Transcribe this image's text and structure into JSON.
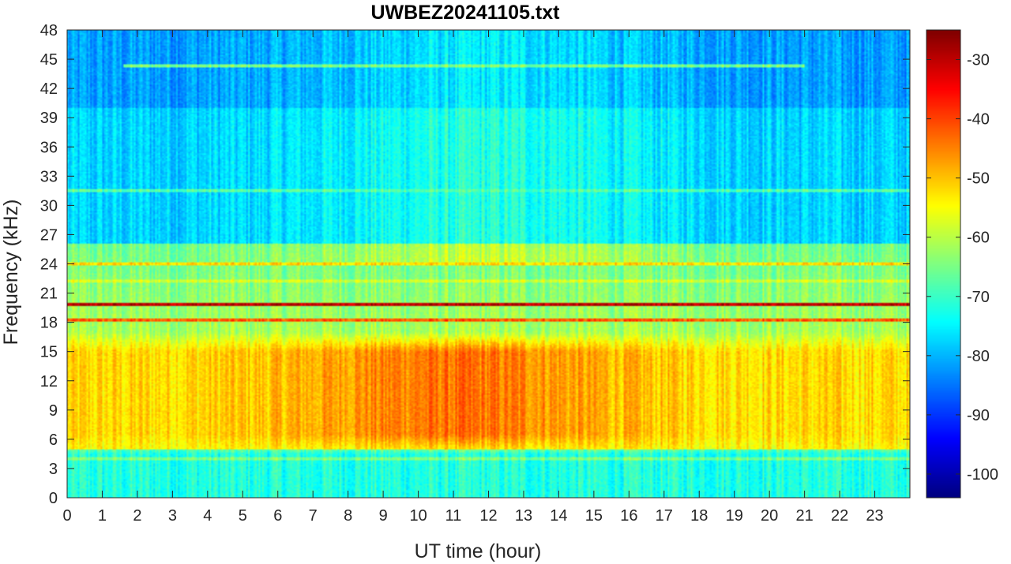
{
  "chart_data": {
    "type": "heatmap",
    "title": "UWBEZ20241105.txt",
    "xlabel": "UT time (hour)",
    "ylabel": "Frequency (kHz)",
    "xlim": [
      0,
      24
    ],
    "ylim": [
      0,
      48
    ],
    "x_ticks": [
      0,
      1,
      2,
      3,
      4,
      5,
      6,
      7,
      8,
      9,
      10,
      11,
      12,
      13,
      14,
      15,
      16,
      17,
      18,
      19,
      20,
      21,
      22,
      23
    ],
    "y_ticks": [
      0,
      3,
      6,
      9,
      12,
      15,
      18,
      21,
      24,
      27,
      30,
      33,
      36,
      39,
      42,
      45,
      48
    ],
    "colormap": "jet",
    "colorbar": {
      "range": [
        -104,
        -25
      ],
      "ticks": [
        -30,
        -40,
        -50,
        -60,
        -70,
        -80,
        -90,
        -100
      ]
    },
    "features": [
      {
        "description_type": "band",
        "freq_khz_range": [
          6,
          16
        ],
        "time_hour_range": [
          0,
          24
        ],
        "level_db": -52,
        "peak_time_hour": 11,
        "peak_level_db": -44
      },
      {
        "description_type": "line",
        "freq_khz": 19.8,
        "time_hour_range": [
          0,
          24
        ],
        "level_db": -30
      },
      {
        "description_type": "line",
        "freq_khz": 18.2,
        "time_hour_range": [
          0,
          24
        ],
        "level_db": -42
      },
      {
        "description_type": "line",
        "freq_khz": 24.0,
        "time_hour_range": [
          0,
          24
        ],
        "level_db": -52
      },
      {
        "description_type": "line",
        "freq_khz": 22.2,
        "time_hour_range": [
          0,
          24
        ],
        "level_db": -58
      },
      {
        "description_type": "line",
        "freq_khz": 44.3,
        "time_hour_range": [
          1.6,
          21
        ],
        "level_db": -65
      },
      {
        "description_type": "line",
        "freq_khz": 4.0,
        "time_hour_range": [
          0,
          24
        ],
        "level_db": -65
      },
      {
        "description_type": "line",
        "freq_khz": 31.5,
        "time_hour_range": [
          0,
          24
        ],
        "level_db": -68
      }
    ],
    "background_level_db": {
      "low_freq": -72,
      "mid_freq": -62,
      "high_freq": -78
    }
  },
  "colors": {
    "axis": "#262626",
    "background": "#ffffff"
  }
}
